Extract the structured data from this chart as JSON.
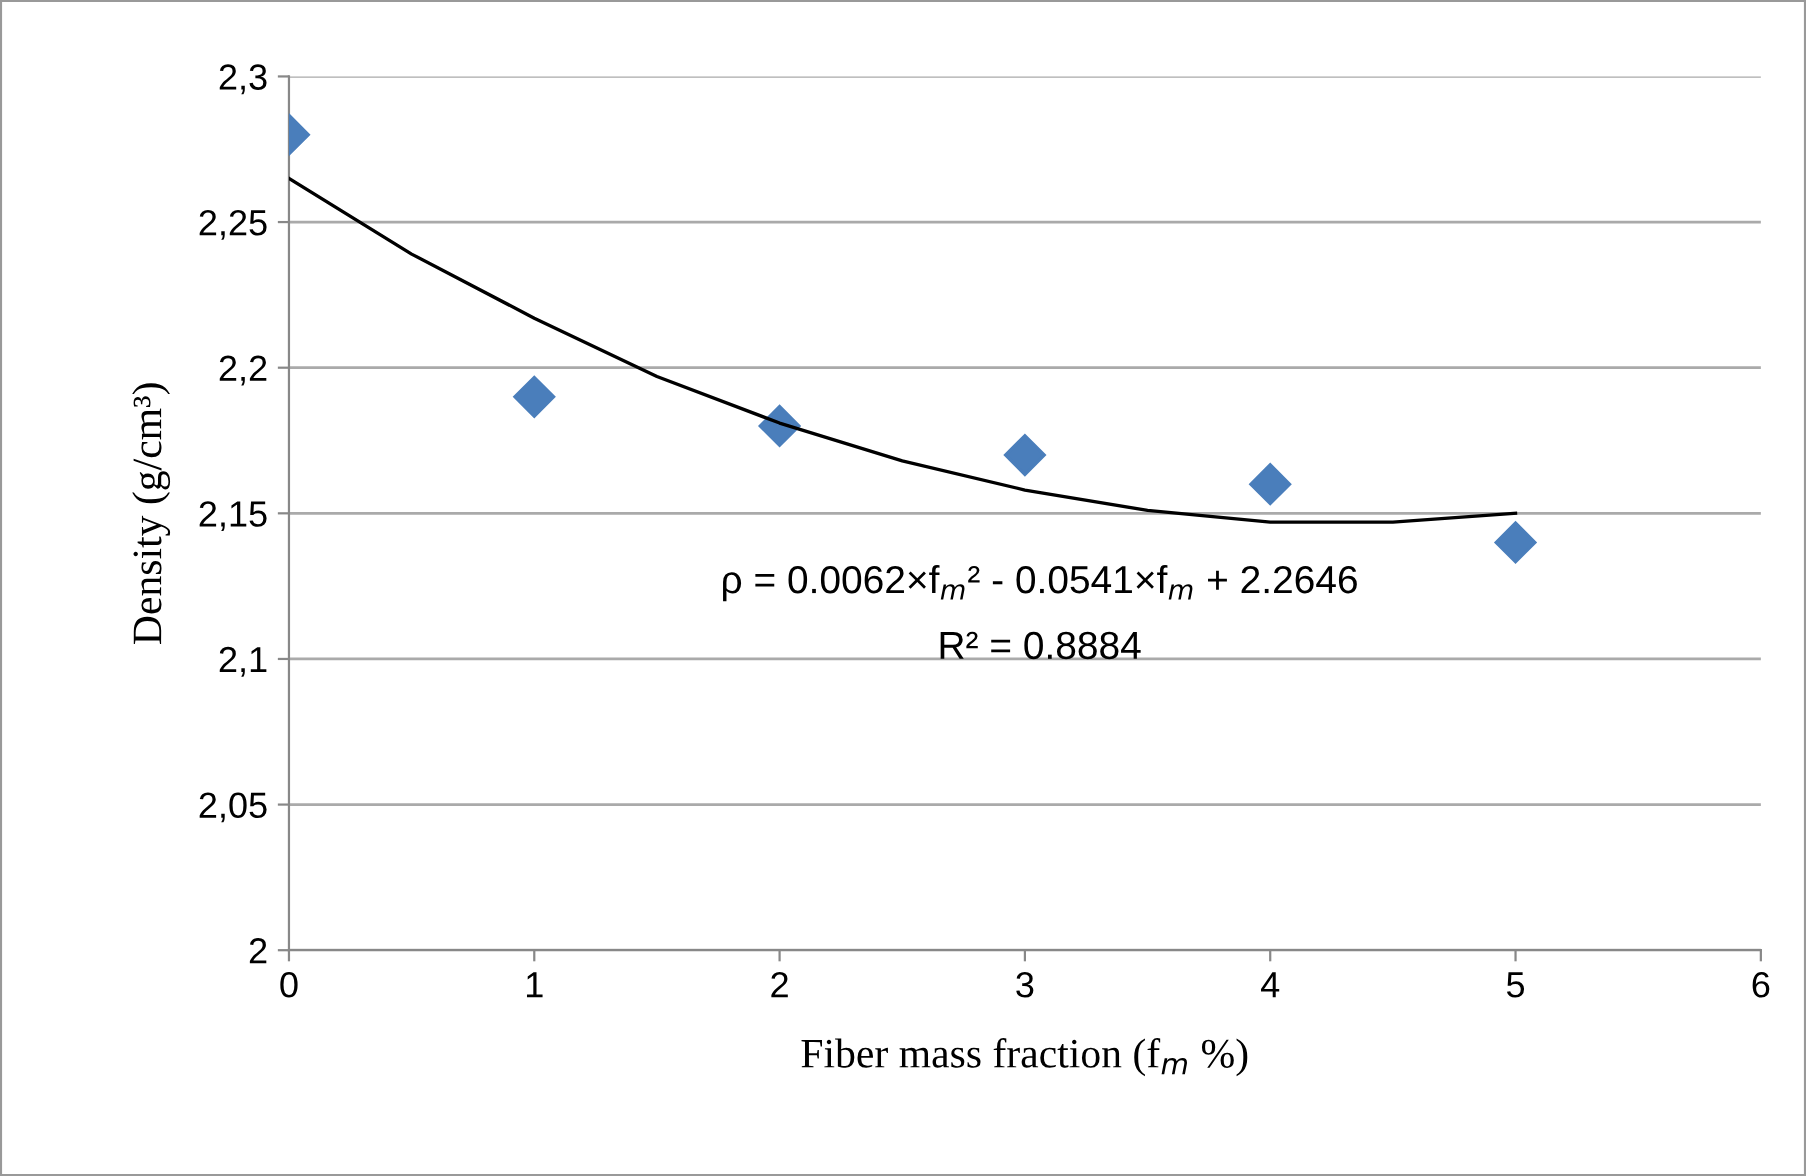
{
  "chart_data": {
    "type": "scatter",
    "xlabel": "Fiber mass fraction (f$_{m}$ %)",
    "ylabel": "Density (g/cm³)",
    "x": [
      0,
      1,
      2,
      3,
      4,
      5
    ],
    "series": [
      {
        "color": "#4a7ebb",
        "marker": "diamond",
        "values": [
          2.28,
          2.19,
          2.18,
          2.17,
          2.16,
          2.14
        ]
      },
      {
        "type": "line",
        "color": "#000000",
        "marker": "none",
        "line_style": "solid",
        "x": [
          0,
          0.5,
          1,
          1.5,
          2,
          2.5,
          3,
          3.5,
          4,
          4.5,
          5
        ],
        "values": [
          2.265,
          2.239,
          2.217,
          2.197,
          2.181,
          2.168,
          2.158,
          2.151,
          2.147,
          2.147,
          2.15
        ]
      }
    ],
    "annotations": [
      "ρ = 0.0062×f$_{m}$² - 0.0541×f$_{m}$ + 2.2646",
      "R² = 0.8884"
    ],
    "xlim": [
      0,
      6
    ],
    "xticks": [
      0,
      1,
      2,
      3,
      4,
      5,
      6
    ],
    "ylim": [
      2,
      2.3
    ],
    "yticks": [
      2,
      {
        "value": 2.05,
        "label": "2,05"
      },
      {
        "value": 2.1,
        "label": "2,1"
      },
      {
        "value": 2.15,
        "label": "2,15"
      },
      {
        "value": 2.2,
        "label": "2,2"
      },
      {
        "value": 2.25,
        "label": "2,25"
      },
      {
        "value": 2.3,
        "label": "2,3"
      }
    ],
    "grid": "y",
    "legend": false
  }
}
